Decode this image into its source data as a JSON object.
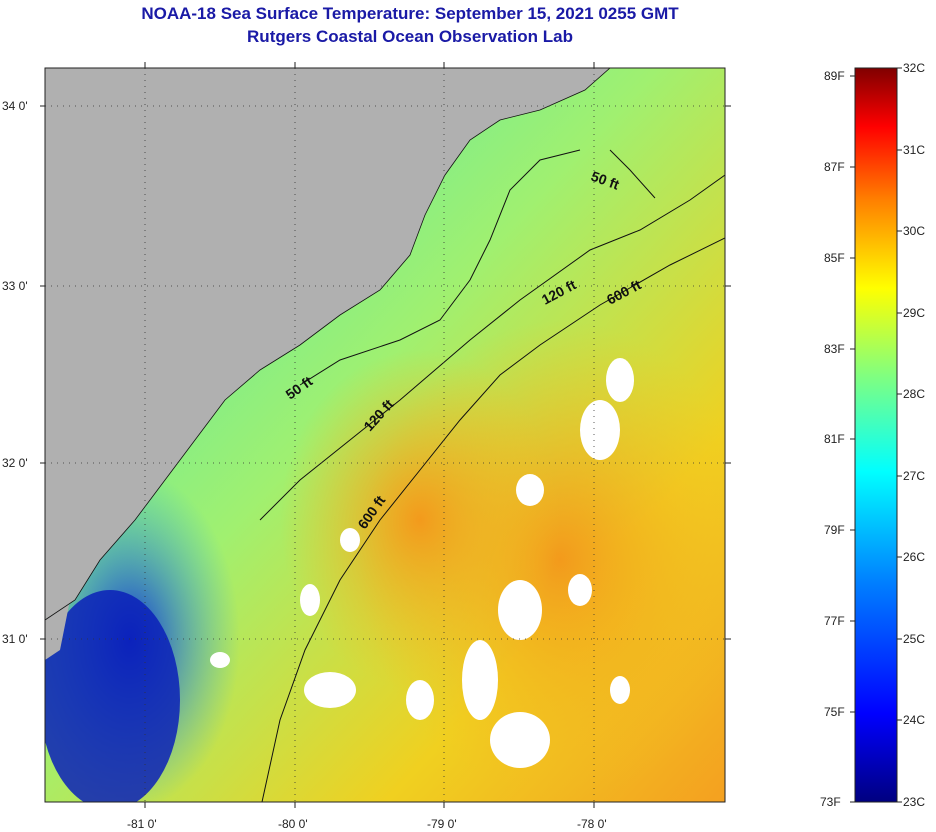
{
  "title_line1": "NOAA-18 Sea Surface Temperature:  September 15, 2021 0255 GMT",
  "title_line2": "Rutgers Coastal Ocean Observation Lab",
  "colors": {
    "title": "#1a1aa6",
    "land": "#b0b0b0",
    "cloud": "#ffffff",
    "contour": "#111111"
  },
  "map": {
    "lat_ticks": [
      "34 0'",
      "33 0'",
      "32 0'",
      "31 0'"
    ],
    "lon_ticks": [
      "-81 0'",
      "-80 0'",
      "-79 0'",
      "-78 0'"
    ],
    "depth_contours": [
      {
        "label": "50 ft"
      },
      {
        "label": "120 ft"
      },
      {
        "label": "600 ft"
      },
      {
        "label": "50 ft"
      },
      {
        "label": "120 ft"
      },
      {
        "label": "600 ft"
      }
    ]
  },
  "colorbar": {
    "unit_f": "F",
    "unit_c": "C",
    "fahrenheit_labels": [
      "89F",
      "87F",
      "85F",
      "83F",
      "81F",
      "79F",
      "77F",
      "75F",
      "73F"
    ],
    "celsius_labels": [
      "32C",
      "31C",
      "30C",
      "29C",
      "28C",
      "27C",
      "26C",
      "25C",
      "24C",
      "23C"
    ],
    "gradient_stops": [
      "#000080",
      "#0000ff",
      "#0080ff",
      "#00ffff",
      "#80ff80",
      "#ffff00",
      "#ff8000",
      "#ff0000",
      "#800000"
    ]
  }
}
